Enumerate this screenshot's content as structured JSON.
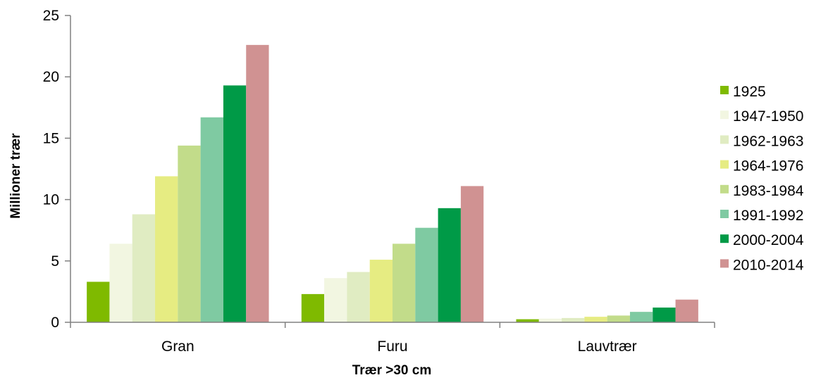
{
  "chart_data": {
    "type": "bar",
    "title": "",
    "xlabel": "Trær >30 cm",
    "ylabel": "Millioner trær",
    "ylim": [
      0,
      25
    ],
    "yticks": [
      0,
      5,
      10,
      15,
      20,
      25
    ],
    "categories": [
      "Gran",
      "Furu",
      "Lauvtrær"
    ],
    "grid": false,
    "legend": "right",
    "series": [
      {
        "name": "1925",
        "color": "#7fba00",
        "values": [
          3.3,
          2.3,
          0.25
        ]
      },
      {
        "name": "1947-1950",
        "color": "#f2f6e1",
        "values": [
          6.4,
          3.6,
          0.3
        ]
      },
      {
        "name": "1962-1963",
        "color": "#e0ecc2",
        "values": [
          8.8,
          4.1,
          0.35
        ]
      },
      {
        "name": "1964-1976",
        "color": "#e6ec82",
        "values": [
          11.9,
          5.1,
          0.45
        ]
      },
      {
        "name": "1983-1984",
        "color": "#c2dc8a",
        "values": [
          14.4,
          6.4,
          0.55
        ]
      },
      {
        "name": "1991-1992",
        "color": "#7fcaa2",
        "values": [
          16.7,
          7.7,
          0.85
        ]
      },
      {
        "name": "2000-2004",
        "color": "#009a47",
        "values": [
          19.3,
          9.3,
          1.2
        ]
      },
      {
        "name": "2010-2014",
        "color": "#d09292",
        "values": [
          22.6,
          11.1,
          1.85
        ]
      }
    ]
  }
}
